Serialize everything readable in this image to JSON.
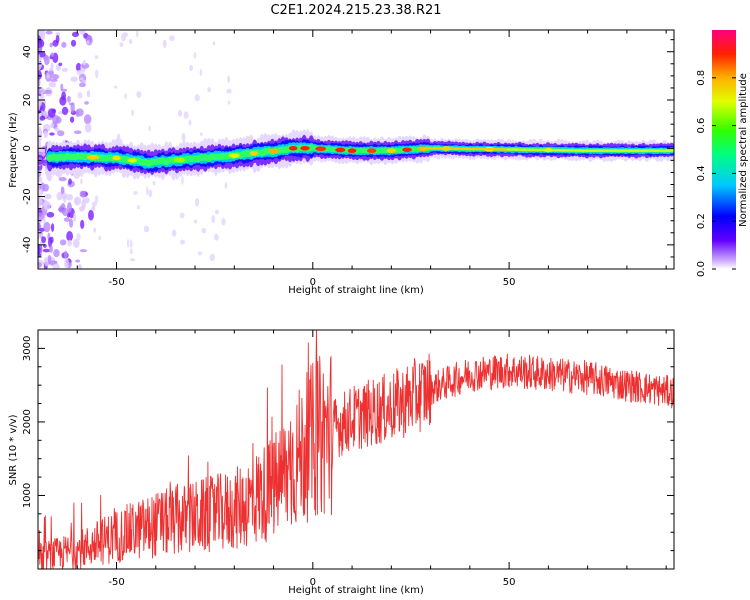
{
  "figure": {
    "title": "C2E1.2024.215.23.38.R21"
  },
  "chart_data": [
    {
      "type": "heatmap",
      "xlabel": "Height of straight line (km)",
      "ylabel": "Frequency (Hz)",
      "xlim": [
        -70,
        92
      ],
      "ylim": [
        -50,
        49
      ],
      "x_ticks": [
        -50,
        0,
        50
      ],
      "y_ticks": [
        -40,
        -20,
        0,
        20,
        40
      ],
      "x_tick_labels": [
        "-50",
        "0",
        "50"
      ],
      "y_tick_labels": [
        "-40",
        "-20",
        "0",
        "20",
        "40"
      ],
      "grid": false,
      "colorbar": {
        "label": "Normalized spectral amplitude",
        "range": [
          0.0,
          1.0
        ],
        "ticks": [
          0.0,
          0.2,
          0.4,
          0.6,
          0.8
        ],
        "tick_labels": [
          "0.0",
          "0.2",
          "0.4",
          "0.6",
          "0.8"
        ],
        "colors": [
          "#ffffff",
          "#c8a0ff",
          "#5000ff",
          "#0000ff",
          "#00c8ff",
          "#00ff80",
          "#30ff00",
          "#e0ff00",
          "#ffb000",
          "#ff2000",
          "#ff0080"
        ]
      },
      "ridge": {
        "x": [
          -70,
          -60,
          -50,
          -42,
          -35,
          -28,
          -20,
          -12,
          -5,
          0,
          10,
          20,
          30,
          50,
          70,
          92
        ],
        "frequency": [
          -4,
          -3.5,
          -4,
          -6,
          -5,
          -4,
          -3,
          -1.5,
          0,
          0,
          -1,
          -1,
          0,
          -0.5,
          -1,
          -1
        ]
      }
    },
    {
      "type": "line",
      "xlabel": "Height of straight line (km)",
      "ylabel": "SNR (10 * v/v)",
      "xlim": [
        -70,
        92
      ],
      "ylim": [
        0,
        3250
      ],
      "x_ticks": [
        -50,
        0,
        50
      ],
      "y_ticks": [
        1000,
        2000,
        3000
      ],
      "x_tick_labels": [
        "-50",
        "0",
        "50"
      ],
      "y_tick_labels": [
        "1000",
        "2000",
        "3000"
      ],
      "grid": false,
      "color": "#ee3030",
      "trend": {
        "x": [
          -70,
          -60,
          -50,
          -40,
          -30,
          -20,
          -10,
          0,
          10,
          20,
          30,
          40,
          50,
          60,
          70,
          80,
          92
        ],
        "y": [
          150,
          250,
          450,
          600,
          700,
          800,
          1100,
          1750,
          2050,
          2200,
          2450,
          2650,
          2700,
          2650,
          2600,
          2500,
          2400
        ]
      }
    }
  ]
}
